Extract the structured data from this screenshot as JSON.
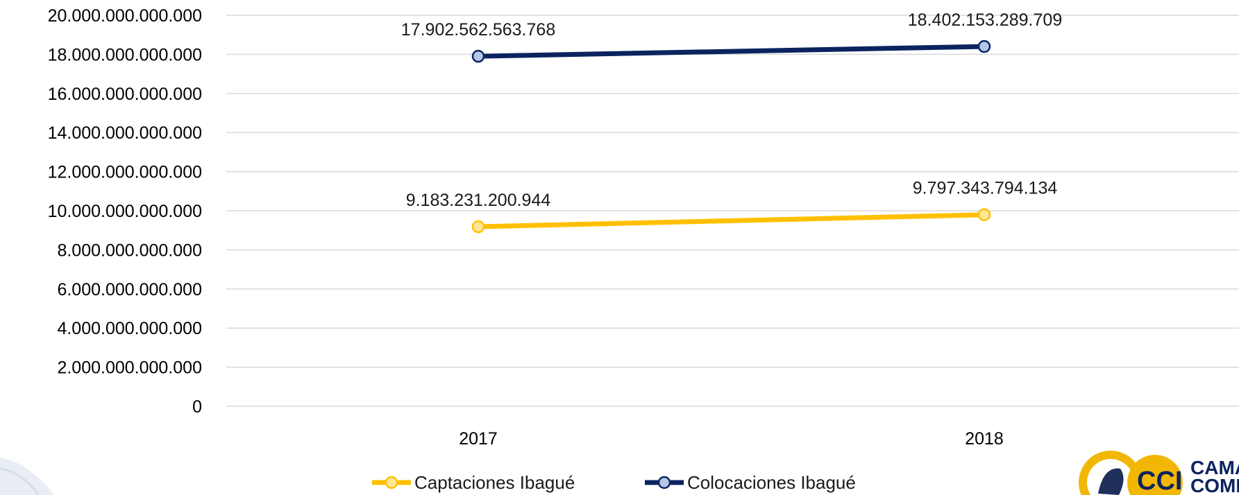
{
  "chart_data": {
    "type": "line",
    "categories": [
      "2017",
      "2018"
    ],
    "series": [
      {
        "name": "Captaciones Ibagué",
        "color": "#FFC000",
        "values": [
          9183231200944,
          9797343794134
        ],
        "labels": [
          "9.183.231.200.944",
          "9.797.343.794.134"
        ]
      },
      {
        "name": "Colocaciones Ibagué",
        "color": "#0B2460",
        "values": [
          17902562563768,
          18402153289709
        ],
        "labels": [
          "17.902.562.563.768",
          "18.402.153.289.709"
        ]
      }
    ],
    "ylim": [
      0,
      20000000000000
    ],
    "yticks": [
      {
        "value": 0,
        "label": "0"
      },
      {
        "value": 2000000000000,
        "label": "2.000.000.000.000"
      },
      {
        "value": 4000000000000,
        "label": "4.000.000.000.000"
      },
      {
        "value": 6000000000000,
        "label": "6.000.000.000.000"
      },
      {
        "value": 8000000000000,
        "label": "8.000.000.000.000"
      },
      {
        "value": 10000000000000,
        "label": "10.000.000.000.000"
      },
      {
        "value": 12000000000000,
        "label": "12.000.000.000.000"
      },
      {
        "value": 14000000000000,
        "label": "14.000.000.000.000"
      },
      {
        "value": 16000000000000,
        "label": "16.000.000.000.000"
      },
      {
        "value": 18000000000000,
        "label": "18.000.000.000.000"
      },
      {
        "value": 20000000000000,
        "label": "20.000.000.000.000"
      }
    ],
    "grid": true,
    "legend_position": "bottom"
  },
  "logo": {
    "text_top": "CAMARA",
    "text_bottom": "COMERCIO",
    "initials": "CCI"
  }
}
